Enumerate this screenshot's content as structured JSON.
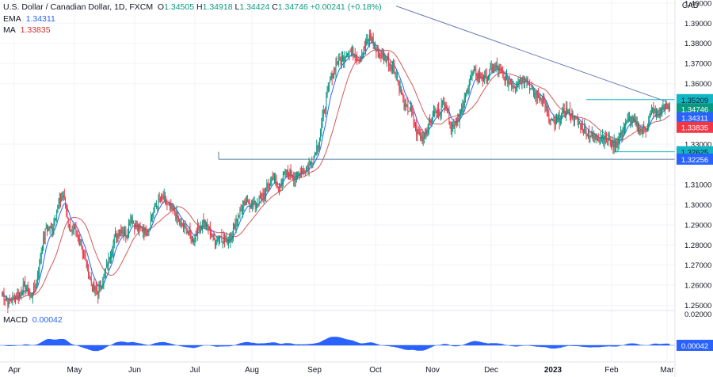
{
  "header": {
    "symbol": "U.S. Dollar / Canadian Dollar, 1D, FXCM",
    "open_label": "O",
    "open": "1.34505",
    "high_label": "H",
    "high": "1.34918",
    "low_label": "L",
    "low": "1.34424",
    "close_label": "C",
    "close": "1.34746",
    "change": "+0.00241 (+0.18%)",
    "ema_label": "EMA",
    "ema": "1.34311",
    "ma_label": "MA",
    "ma": "1.33835",
    "currency": "CAD"
  },
  "macd": {
    "label": "MACD",
    "value": "0.00042",
    "axis_max": "0.02000",
    "tag": "0.00042"
  },
  "colors": {
    "up": "#089981",
    "down": "#f23645",
    "ema": "#2962ff",
    "ma": "#d5595b",
    "trend": "#6b7bb5",
    "level": "#4c7a9e",
    "macd": "#2962ff"
  },
  "chart_data": {
    "type": "candlestick",
    "y_ticks": [
      "1.25000",
      "1.26000",
      "1.27000",
      "1.28000",
      "1.29000",
      "1.30000",
      "1.31000",
      "1.33000",
      "1.36000",
      "1.37000",
      "1.38000",
      "1.39000",
      "1.40000"
    ],
    "x_ticks": [
      "Apr",
      "May",
      "Jun",
      "Jul",
      "Aug",
      "Sep",
      "Oct",
      "Nov",
      "Dec",
      "2023",
      "Feb",
      "Mar"
    ],
    "ylim": [
      1.2475,
      1.4015
    ],
    "price_tags": [
      {
        "label": "1.35209",
        "bg": "#12b5c4",
        "fg": "#131722"
      },
      {
        "label": "1.34746",
        "bg": "#089981",
        "fg": "#ffffff"
      },
      {
        "label": "1.34311",
        "bg": "#2962ff",
        "fg": "#ffffff"
      },
      {
        "label": "1.33835",
        "bg": "#f23645",
        "fg": "#ffffff"
      },
      {
        "label": "1.32625",
        "bg": "#12b5c4",
        "fg": "#131722"
      },
      {
        "label": "1.32256",
        "bg": "#2962ff",
        "fg": "#ffffff"
      }
    ],
    "close_anchors": [
      [
        0,
        1.256
      ],
      [
        6,
        1.2515
      ],
      [
        12,
        1.2535
      ],
      [
        18,
        1.256
      ],
      [
        24,
        1.26
      ],
      [
        30,
        1.2535
      ],
      [
        36,
        1.262
      ],
      [
        40,
        1.274
      ],
      [
        46,
        1.289
      ],
      [
        52,
        1.288
      ],
      [
        58,
        1.299
      ],
      [
        64,
        1.305
      ],
      [
        70,
        1.289
      ],
      [
        76,
        1.286
      ],
      [
        82,
        1.281
      ],
      [
        88,
        1.27
      ],
      [
        94,
        1.259
      ],
      [
        100,
        1.256
      ],
      [
        106,
        1.264
      ],
      [
        112,
        1.274
      ],
      [
        118,
        1.284
      ],
      [
        124,
        1.288
      ],
      [
        130,
        1.285
      ],
      [
        134,
        1.294
      ],
      [
        140,
        1.289
      ],
      [
        146,
        1.288
      ],
      [
        152,
        1.286
      ],
      [
        156,
        1.295
      ],
      [
        162,
        1.301
      ],
      [
        168,
        1.303
      ],
      [
        174,
        1.299
      ],
      [
        180,
        1.296
      ],
      [
        186,
        1.29
      ],
      [
        192,
        1.288
      ],
      [
        198,
        1.282
      ],
      [
        204,
        1.288
      ],
      [
        210,
        1.292
      ],
      [
        216,
        1.287
      ],
      [
        222,
        1.282
      ],
      [
        228,
        1.285
      ],
      [
        234,
        1.281
      ],
      [
        240,
        1.286
      ],
      [
        246,
        1.295
      ],
      [
        252,
        1.3
      ],
      [
        258,
        1.301
      ],
      [
        264,
        1.3
      ],
      [
        270,
        1.303
      ],
      [
        276,
        1.308
      ],
      [
        282,
        1.314
      ],
      [
        288,
        1.308
      ],
      [
        294,
        1.315
      ],
      [
        300,
        1.316
      ],
      [
        306,
        1.313
      ],
      [
        312,
        1.317
      ],
      [
        318,
        1.318
      ],
      [
        324,
        1.323
      ],
      [
        330,
        1.331
      ],
      [
        336,
        1.348
      ],
      [
        342,
        1.362
      ],
      [
        348,
        1.37
      ],
      [
        354,
        1.372
      ],
      [
        360,
        1.376
      ],
      [
        366,
        1.376
      ],
      [
        372,
        1.372
      ],
      [
        378,
        1.378
      ],
      [
        384,
        1.384
      ],
      [
        390,
        1.376
      ],
      [
        396,
        1.373
      ],
      [
        402,
        1.372
      ],
      [
        408,
        1.368
      ],
      [
        414,
        1.359
      ],
      [
        420,
        1.348
      ],
      [
        426,
        1.347
      ],
      [
        432,
        1.336
      ],
      [
        438,
        1.333
      ],
      [
        444,
        1.339
      ],
      [
        450,
        1.345
      ],
      [
        456,
        1.347
      ],
      [
        462,
        1.352
      ],
      [
        468,
        1.338
      ],
      [
        474,
        1.342
      ],
      [
        480,
        1.347
      ],
      [
        486,
        1.36
      ],
      [
        492,
        1.365
      ],
      [
        498,
        1.364
      ],
      [
        504,
        1.362
      ],
      [
        510,
        1.367
      ],
      [
        516,
        1.368
      ],
      [
        522,
        1.364
      ],
      [
        528,
        1.361
      ],
      [
        534,
        1.359
      ],
      [
        540,
        1.362
      ],
      [
        546,
        1.363
      ],
      [
        552,
        1.356
      ],
      [
        558,
        1.354
      ],
      [
        564,
        1.353
      ],
      [
        570,
        1.342
      ],
      [
        576,
        1.34
      ],
      [
        582,
        1.343
      ],
      [
        588,
        1.347
      ],
      [
        594,
        1.344
      ],
      [
        600,
        1.341
      ],
      [
        606,
        1.338
      ],
      [
        612,
        1.335
      ],
      [
        618,
        1.333
      ],
      [
        624,
        1.334
      ],
      [
        630,
        1.333
      ],
      [
        636,
        1.33
      ],
      [
        642,
        1.331
      ],
      [
        648,
        1.338
      ],
      [
        654,
        1.343
      ],
      [
        660,
        1.34
      ],
      [
        666,
        1.337
      ],
      [
        672,
        1.338
      ],
      [
        678,
        1.347
      ],
      [
        684,
        1.344
      ],
      [
        690,
        1.349
      ],
      [
        696,
        1.3475
      ]
    ]
  }
}
